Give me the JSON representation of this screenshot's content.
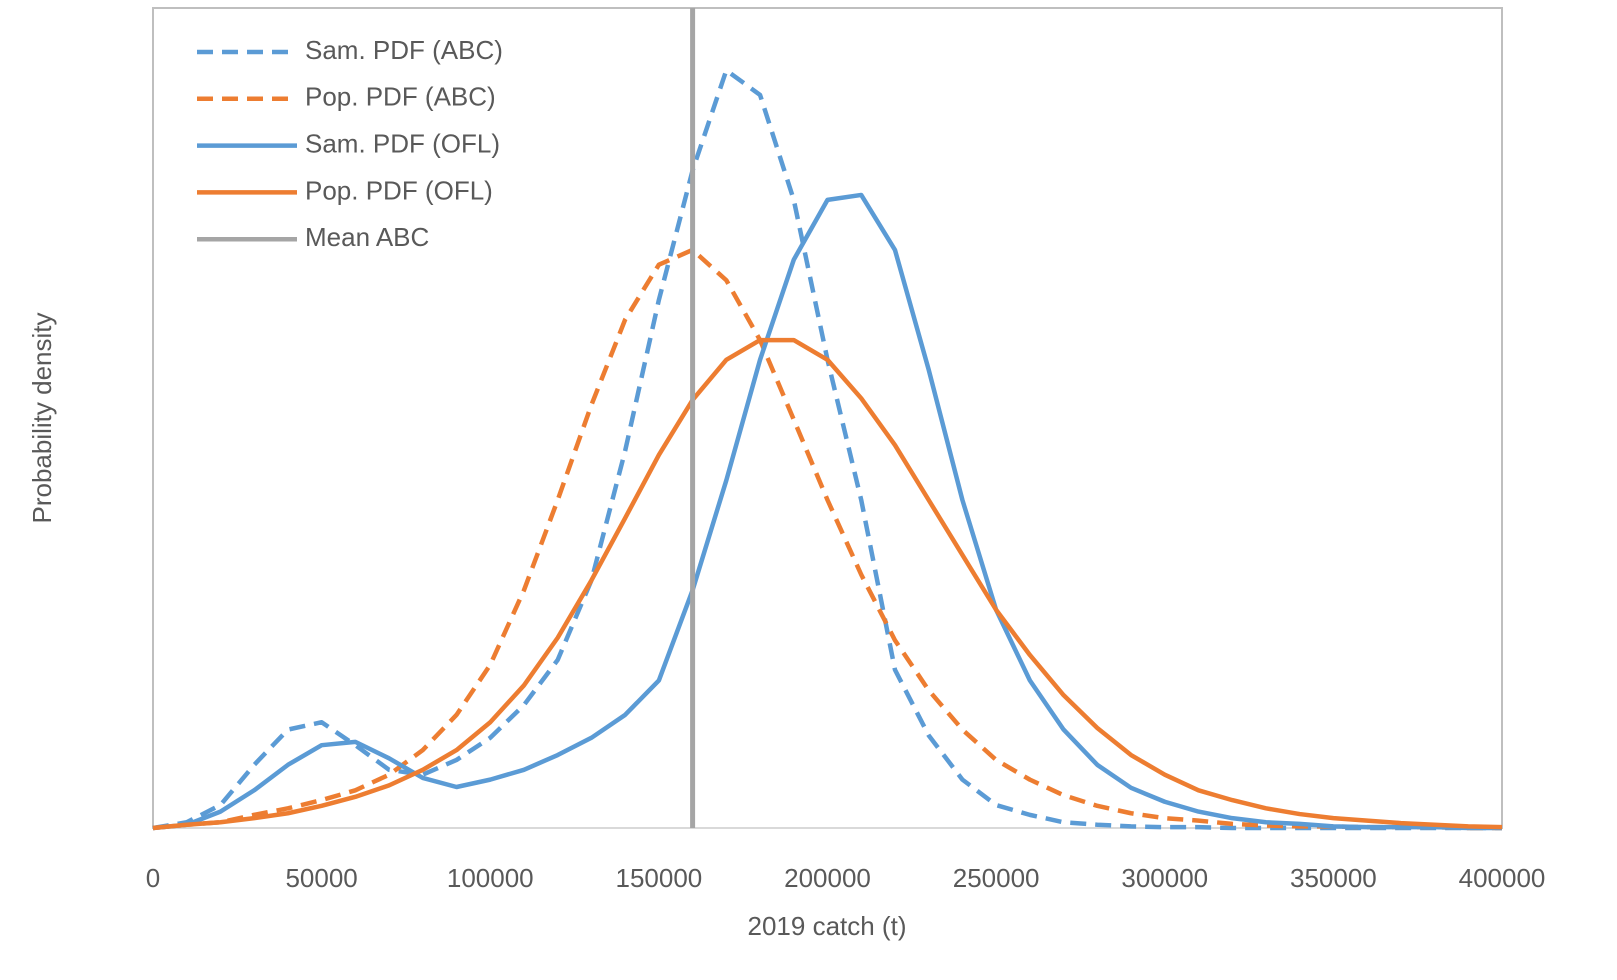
{
  "chart_data": {
    "type": "line",
    "x_label": "2019 catch (t)",
    "y_label": "Probability density",
    "x": [
      0,
      10000,
      20000,
      30000,
      40000,
      50000,
      60000,
      70000,
      80000,
      90000,
      100000,
      110000,
      120000,
      130000,
      140000,
      150000,
      160000,
      170000,
      180000,
      190000,
      200000,
      210000,
      220000,
      230000,
      240000,
      250000,
      260000,
      270000,
      280000,
      290000,
      300000,
      310000,
      320000,
      330000,
      340000,
      350000,
      360000,
      370000,
      380000,
      390000,
      400000
    ],
    "series": [
      {
        "name": "Sam. PDF (ABC)",
        "color": "#5b9bd5",
        "dashed": true,
        "values": [
          0,
          0.7,
          2.8,
          7.7,
          12,
          12.9,
          10.1,
          7.1,
          6.5,
          8.3,
          11,
          15,
          20.5,
          30.2,
          46,
          64.4,
          80.2,
          92.4,
          89.4,
          76.6,
          57.1,
          40,
          19.3,
          11.3,
          5.9,
          2.8,
          1.6,
          0.7,
          0.4,
          0.2,
          0.1,
          0.1,
          0,
          0,
          0,
          0,
          0,
          0,
          0,
          0,
          0
        ]
      },
      {
        "name": "Pop. PDF (ABC)",
        "color": "#ed7d31",
        "dashed": true,
        "values": [
          0,
          0.4,
          0.7,
          1.6,
          2.4,
          3.4,
          4.6,
          6.5,
          9.5,
          13.8,
          19.9,
          29,
          40,
          51.6,
          62,
          68.7,
          70.5,
          66.8,
          59.5,
          49.8,
          40,
          30.9,
          22.9,
          16.8,
          12,
          8.3,
          5.9,
          4,
          2.7,
          1.8,
          1.2,
          0.9,
          0.5,
          0.3,
          0.2,
          0.2,
          0.1,
          0.1,
          0.1,
          0,
          0
        ]
      },
      {
        "name": "Sam. PDF (OFL)",
        "color": "#5b9bd5",
        "dashed": false,
        "values": [
          0,
          0.4,
          2,
          4.6,
          7.7,
          10.1,
          10.5,
          8.5,
          6.1,
          5,
          5.9,
          7.1,
          8.9,
          11,
          13.8,
          18,
          29,
          42.4,
          57.1,
          69.3,
          76.6,
          77.2,
          70.5,
          55.9,
          40,
          26.6,
          18,
          12,
          7.7,
          4.9,
          3.2,
          2,
          1.2,
          0.7,
          0.5,
          0.2,
          0.1,
          0.1,
          0.1,
          0,
          0
        ]
      },
      {
        "name": "Pop. PDF (OFL)",
        "color": "#ed7d31",
        "dashed": false,
        "values": [
          0,
          0.4,
          0.7,
          1.2,
          1.8,
          2.7,
          3.8,
          5.2,
          7.1,
          9.5,
          12.9,
          17.4,
          23.2,
          30.2,
          37.8,
          45.5,
          52.2,
          57.1,
          59.5,
          59.5,
          57.1,
          52.4,
          46.7,
          40,
          33.3,
          26.6,
          21.1,
          16.2,
          12.2,
          8.9,
          6.5,
          4.6,
          3.4,
          2.4,
          1.7,
          1.2,
          0.9,
          0.6,
          0.4,
          0.2,
          0.1
        ]
      },
      {
        "name": "Mean ABC",
        "color": "#a5a5a5",
        "dashed": false,
        "x": [
          160000,
          160000
        ],
        "values": [
          0,
          100
        ]
      }
    ],
    "xlim": [
      0,
      400000
    ],
    "xticks": [
      0,
      50000,
      100000,
      150000,
      200000,
      250000,
      300000,
      350000,
      400000
    ],
    "ylim": [
      0,
      100
    ],
    "legend": "top-left"
  }
}
